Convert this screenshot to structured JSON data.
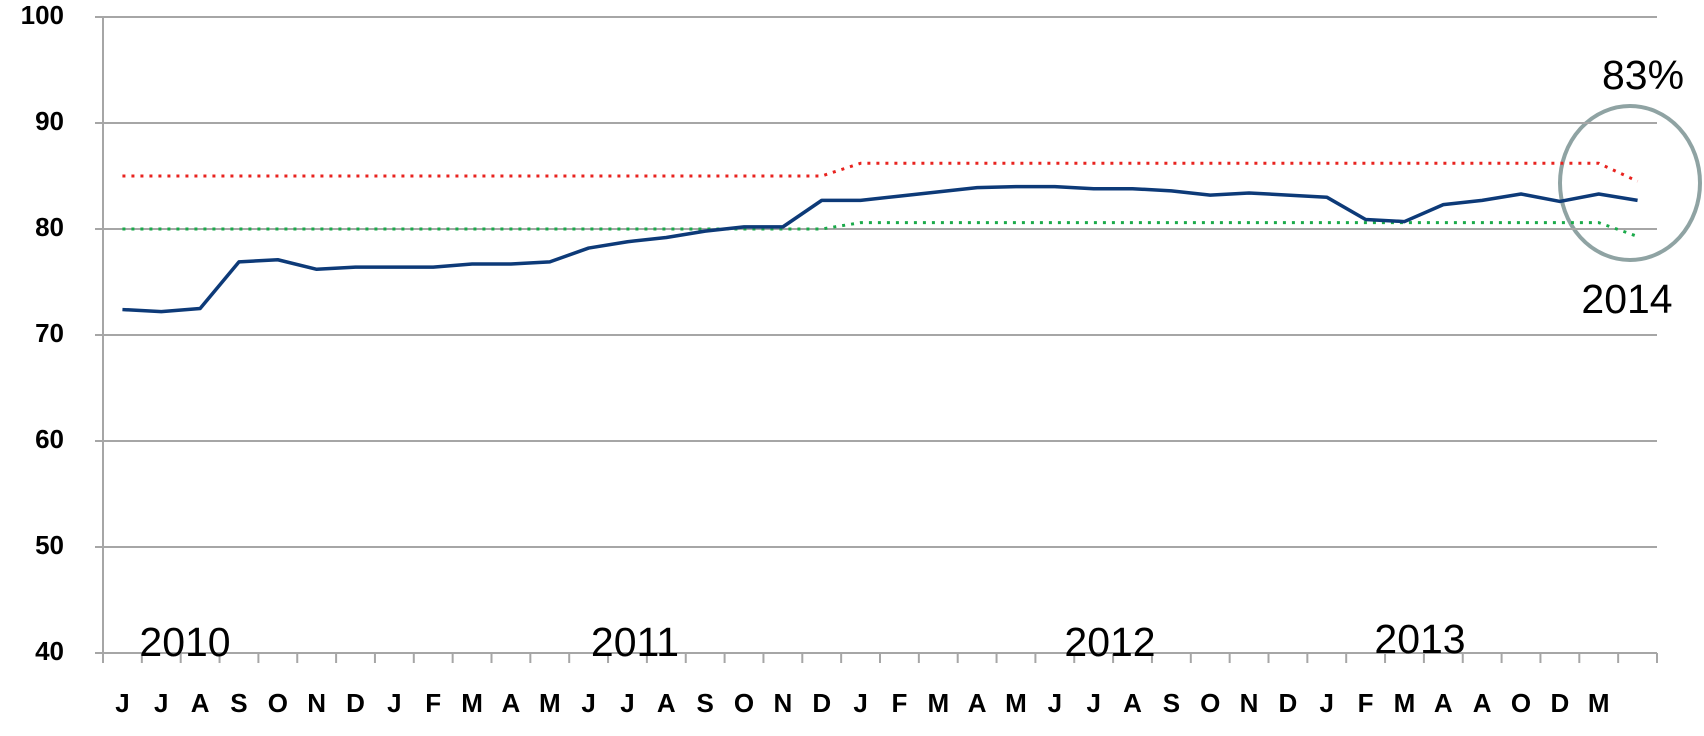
{
  "chart_data": {
    "type": "line",
    "categories": [
      "J",
      "J",
      "A",
      "S",
      "O",
      "N",
      "D",
      "J",
      "F",
      "M",
      "A",
      "M",
      "J",
      "J",
      "A",
      "S",
      "O",
      "N",
      "D",
      "J",
      "F",
      "M",
      "A",
      "M",
      "J",
      "J",
      "A",
      "S",
      "O",
      "N",
      "D",
      "J",
      "F",
      "M",
      "A",
      "A",
      "O",
      "D",
      "M",
      null
    ],
    "series": [
      {
        "color": "#e8231f",
        "style": "dotted",
        "values": [
          85,
          85,
          85,
          85,
          85,
          85,
          85,
          85,
          85,
          85,
          85,
          85,
          85,
          85,
          85,
          85,
          85,
          85,
          85,
          86.2,
          86.2,
          86.2,
          86.2,
          86.2,
          86.2,
          86.2,
          86.2,
          86.2,
          86.2,
          86.2,
          86.2,
          86.2,
          86.2,
          86.2,
          86.2,
          86.2,
          86.2,
          86.2,
          86.2,
          84.5
        ]
      },
      {
        "color": "#1aaa4a",
        "style": "dotted",
        "values": [
          80,
          80,
          80,
          80,
          80,
          80,
          80,
          80,
          80,
          80,
          80,
          80,
          80,
          80,
          80,
          80,
          80,
          80,
          80,
          80.6,
          80.6,
          80.6,
          80.6,
          80.6,
          80.6,
          80.6,
          80.6,
          80.6,
          80.6,
          80.6,
          80.6,
          80.6,
          80.6,
          80.6,
          80.6,
          80.6,
          80.6,
          80.6,
          80.6,
          79.3
        ]
      },
      {
        "color": "#0d3a78",
        "style": "solid",
        "values": [
          72.4,
          72.2,
          72.5,
          76.9,
          77.1,
          76.2,
          76.4,
          76.4,
          76.4,
          76.7,
          76.7,
          76.9,
          78.2,
          78.8,
          79.2,
          79.8,
          80.2,
          80.2,
          82.7,
          82.7,
          83.1,
          83.5,
          83.9,
          84.0,
          84.0,
          83.8,
          83.8,
          83.6,
          83.2,
          83.4,
          83.2,
          83.0,
          80.9,
          80.7,
          82.3,
          82.7,
          83.3,
          82.6,
          83.3,
          82.7
        ]
      }
    ],
    "ylim": [
      40,
      100
    ],
    "yticks": [
      40,
      50,
      60,
      70,
      80,
      90,
      100
    ],
    "grid": true,
    "annotations": [
      "2010",
      "2011",
      "2012",
      "2013",
      "83%",
      "2014"
    ]
  }
}
